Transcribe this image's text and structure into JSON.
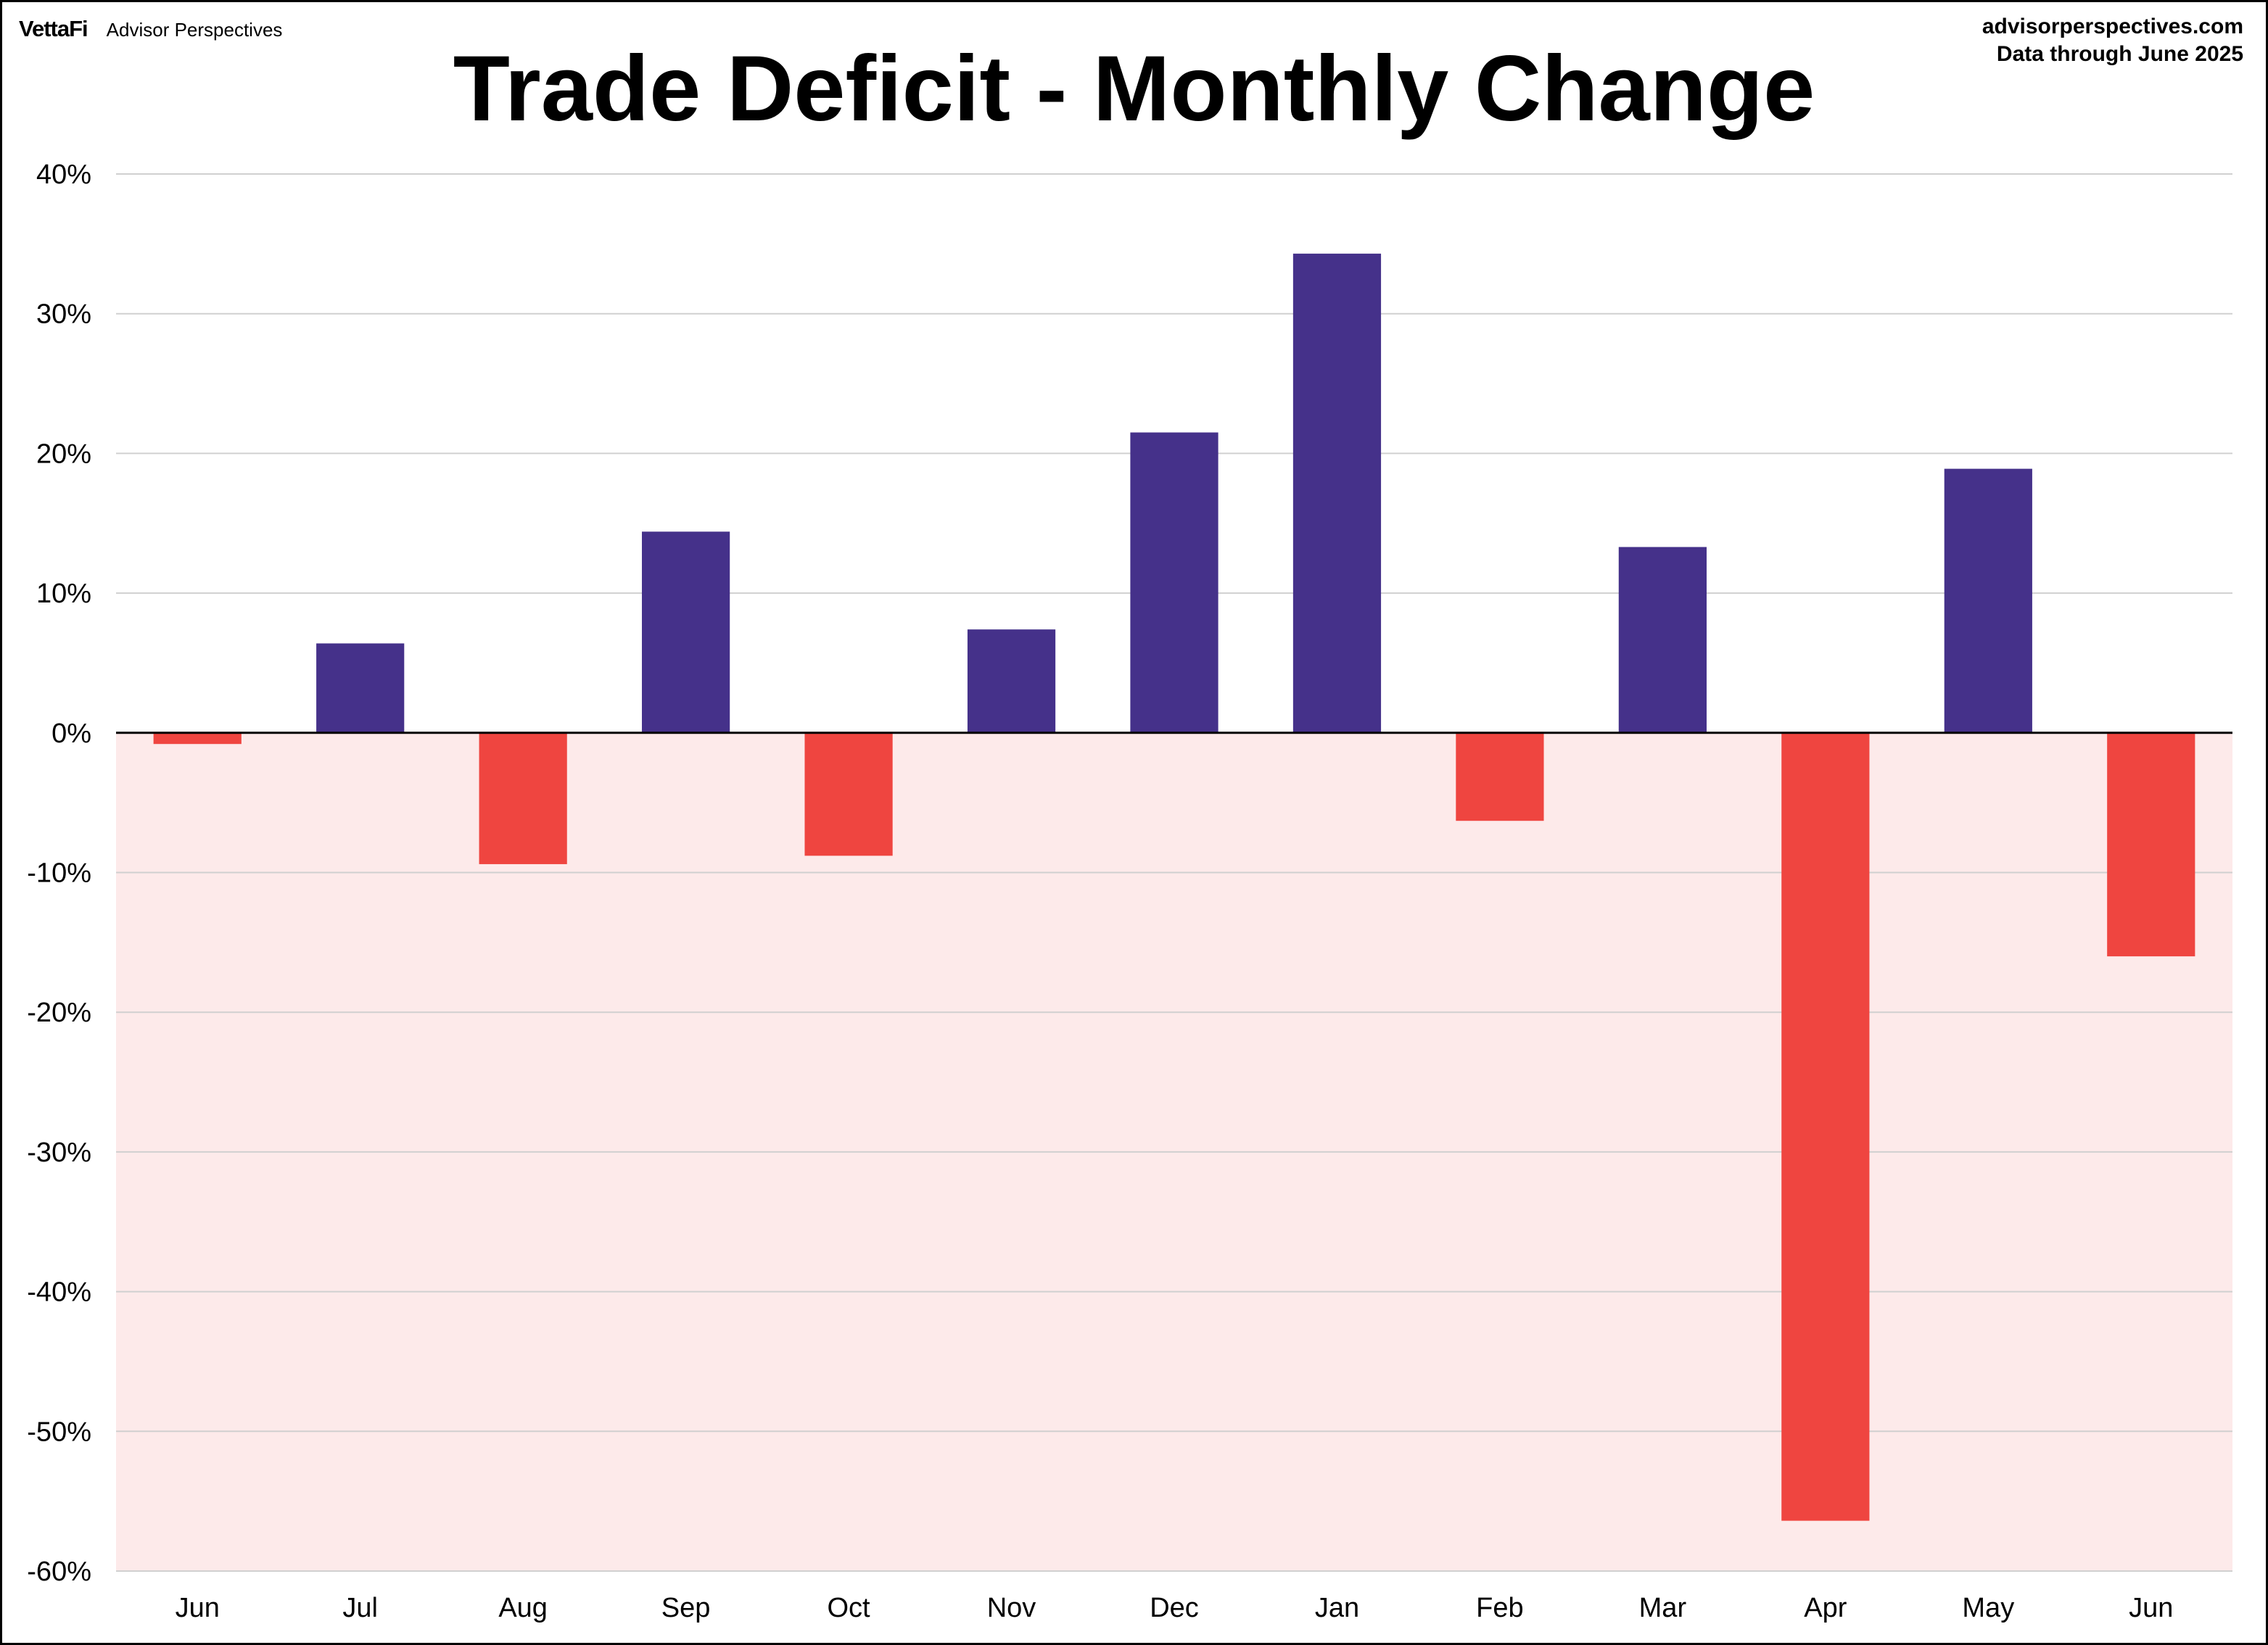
{
  "header": {
    "brand_logo": "VettaFi",
    "brand_name": "Advisor Perspectives",
    "source_url": "advisorperspectives.com",
    "data_note": "Data through June 2025"
  },
  "colors": {
    "positive_bar": "#45318A",
    "negative_bar": "#EF4540",
    "negative_region": "#FDEAEA",
    "gridline": "#D0D0D0",
    "zero_line": "#000000"
  },
  "chart_data": {
    "type": "bar",
    "title": "Trade Deficit - Monthly Change",
    "xlabel": "",
    "ylabel": "",
    "categories": [
      "Jun",
      "Jul",
      "Aug",
      "Sep",
      "Oct",
      "Nov",
      "Dec",
      "Jan",
      "Feb",
      "Mar",
      "Apr",
      "May",
      "Jun"
    ],
    "values": [
      -0.8,
      6.4,
      -9.4,
      14.4,
      -8.8,
      7.4,
      21.5,
      34.3,
      -6.3,
      13.3,
      -56.4,
      18.9,
      -16.0
    ],
    "value_unit": "%",
    "ylim": [
      -60,
      40
    ],
    "yticks": [
      40,
      30,
      20,
      10,
      0,
      -10,
      -20,
      -30,
      -40,
      -50,
      -60
    ],
    "ytick_labels": [
      "40%",
      "30%",
      "20%",
      "10%",
      "0%",
      "-10%",
      "-20%",
      "-30%",
      "-40%",
      "-50%",
      "-60%"
    ],
    "grid": true,
    "legend": "none",
    "negative_region_shaded": true
  }
}
